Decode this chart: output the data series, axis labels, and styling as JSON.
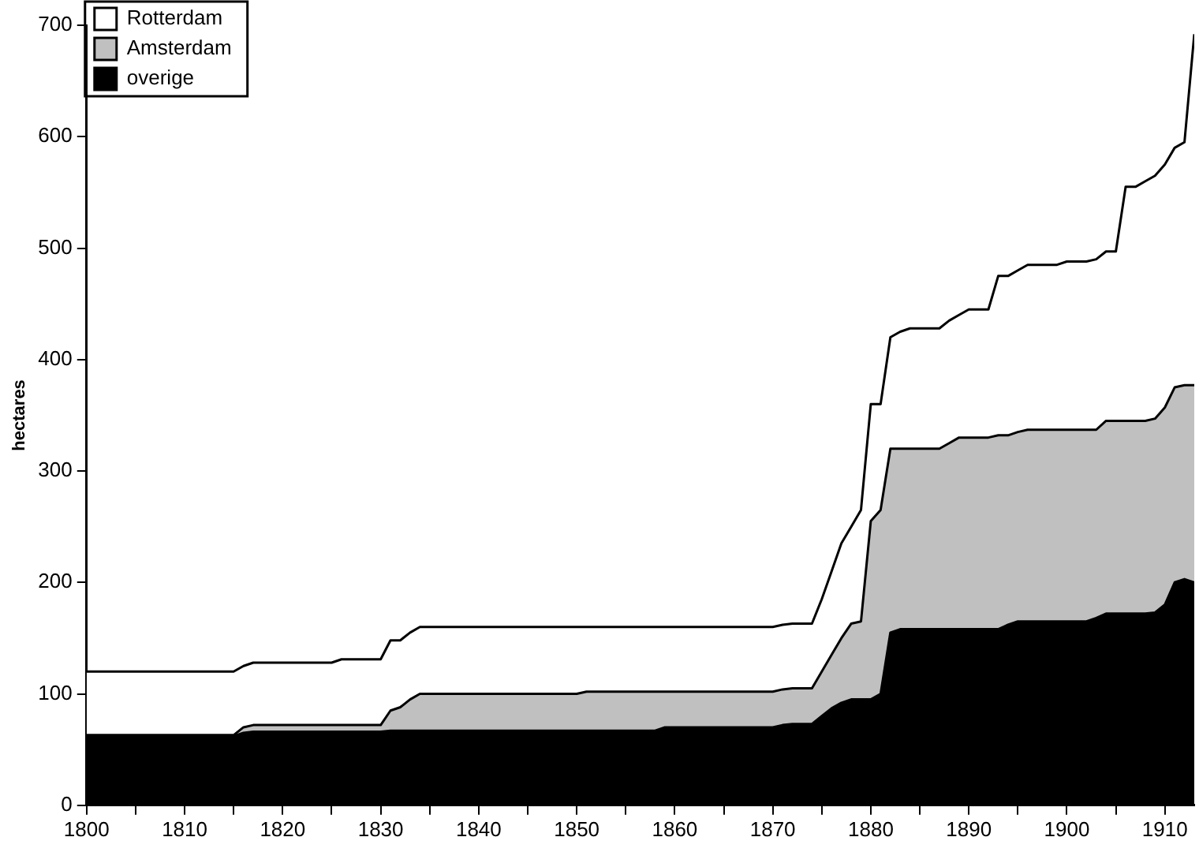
{
  "chart_data": {
    "type": "area",
    "stacked": true,
    "ylabel": "hectares",
    "legend": "top left",
    "grid": false,
    "xlim": [
      1800,
      1913
    ],
    "ylim": [
      0,
      700
    ],
    "yticks": [
      0,
      100,
      200,
      300,
      400,
      500,
      600,
      700
    ],
    "xticks": [
      1800,
      {
        "value": 1805,
        "label": null
      },
      1810,
      {
        "value": 1815,
        "label": null
      },
      1820,
      {
        "value": 1825,
        "label": null
      },
      1830,
      {
        "value": 1835,
        "label": null
      },
      1840,
      {
        "value": 1845,
        "label": null
      },
      1850,
      {
        "value": 1855,
        "label": null
      },
      1860,
      {
        "value": 1865,
        "label": null
      },
      1870,
      {
        "value": 1875,
        "label": null
      },
      1880,
      {
        "value": 1885,
        "label": null
      },
      1890,
      {
        "value": 1895,
        "label": null
      },
      1900,
      {
        "value": 1905,
        "label": null
      },
      1910
    ],
    "x": [
      1800,
      1815,
      1816,
      1817,
      1825,
      1826,
      1830,
      1831,
      1832,
      1833,
      1834,
      1850,
      1851,
      1858,
      1859,
      1870,
      1871,
      1872,
      1874,
      1875,
      1876,
      1877,
      1878,
      1879,
      1880,
      1881,
      1882,
      1883,
      1884,
      1887,
      1888,
      1889,
      1890,
      1892,
      1893,
      1894,
      1895,
      1896,
      1899,
      1900,
      1902,
      1903,
      1904,
      1905,
      1906,
      1907,
      1908,
      1909,
      1910,
      1911,
      1912,
      1913
    ],
    "series": [
      {
        "name": "overige",
        "color": "#000000",
        "values": [
          62,
          62,
          65,
          66,
          66,
          66,
          66,
          67,
          67,
          67,
          67,
          67,
          67,
          67,
          70,
          70,
          72,
          73,
          73,
          80,
          87,
          92,
          95,
          95,
          95,
          100,
          155,
          158,
          158,
          158,
          158,
          158,
          158,
          158,
          158,
          162,
          165,
          165,
          165,
          165,
          165,
          168,
          172,
          172,
          172,
          172,
          172,
          173,
          180,
          200,
          203,
          200
        ]
      },
      {
        "name": "Amsterdam",
        "color": "#c0c0c0",
        "values": [
          1,
          1,
          5,
          6,
          6,
          6,
          6,
          18,
          21,
          28,
          33,
          33,
          35,
          35,
          32,
          32,
          32,
          32,
          32,
          40,
          48,
          58,
          68,
          70,
          160,
          165,
          165,
          162,
          162,
          162,
          167,
          172,
          172,
          172,
          174,
          170,
          170,
          172,
          172,
          172,
          172,
          169,
          173,
          173,
          173,
          173,
          173,
          174,
          177,
          175,
          174,
          177
        ]
      },
      {
        "name": "Rotterdam",
        "color": "#ffffff",
        "values": [
          57,
          57,
          55,
          56,
          56,
          59,
          59,
          63,
          60,
          60,
          60,
          60,
          58,
          58,
          58,
          58,
          58,
          58,
          58,
          65,
          75,
          85,
          87,
          100,
          105,
          95,
          100,
          105,
          108,
          108,
          110,
          110,
          115,
          115,
          143,
          143,
          145,
          148,
          148,
          151,
          151,
          153,
          152,
          152,
          210,
          210,
          215,
          218,
          218,
          215,
          218,
          315
        ]
      }
    ]
  }
}
